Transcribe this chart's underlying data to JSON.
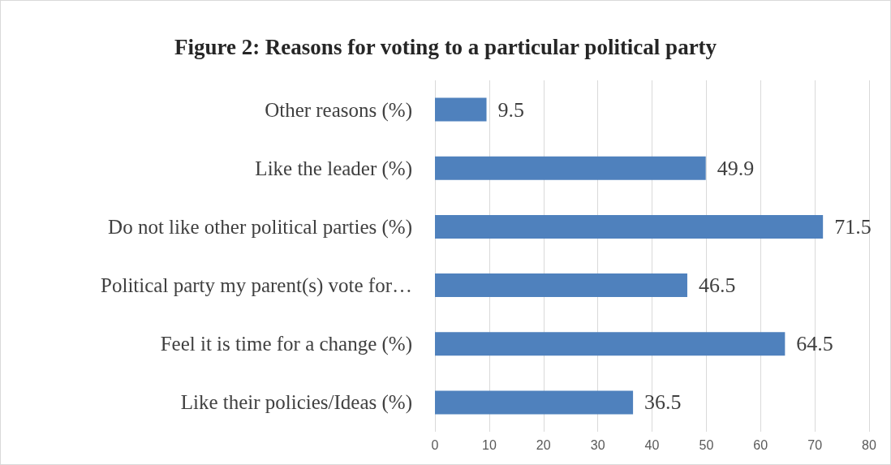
{
  "chart_data": {
    "type": "bar",
    "orientation": "horizontal",
    "title": "Figure 2: Reasons for voting to a particular political party",
    "categories": [
      "Other reasons (%)",
      "Like the leader (%)",
      "Do not like other political parties (%)",
      "Political party my parent(s) vote for…",
      "Feel it is time for a change (%)",
      "Like their policies/Ideas (%)"
    ],
    "values": [
      9.5,
      49.9,
      71.5,
      46.5,
      64.5,
      36.5
    ],
    "color": "#4f81bd",
    "xlim": [
      0,
      80
    ],
    "xticks": [
      0,
      10,
      20,
      30,
      40,
      50,
      60,
      70,
      80
    ],
    "grid": "x",
    "data_labels": true
  }
}
